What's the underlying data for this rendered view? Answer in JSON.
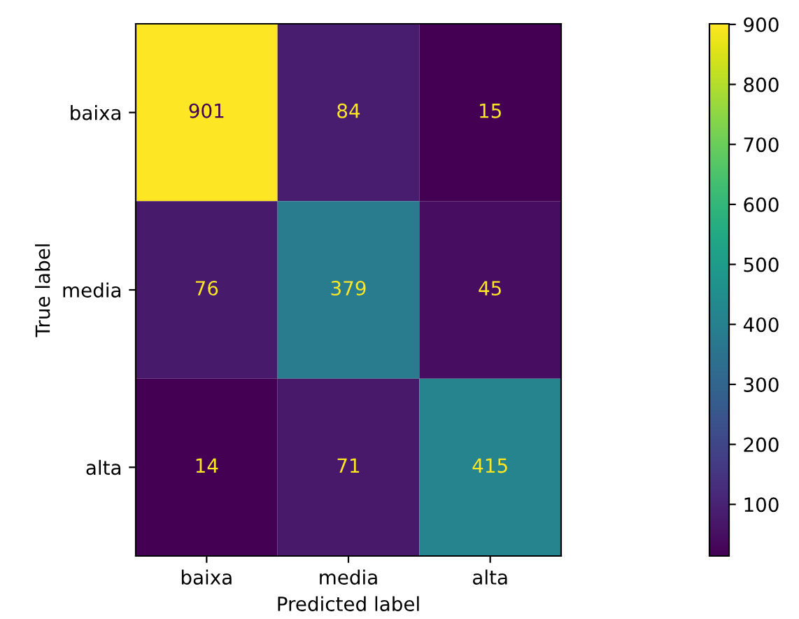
{
  "chart_data": {
    "type": "heatmap",
    "xlabel": "Predicted label",
    "ylabel": "True label",
    "categories": [
      "baixa",
      "media",
      "alta"
    ],
    "y_categories": [
      "baixa",
      "media",
      "alta"
    ],
    "cells": [
      [
        901,
        84,
        15
      ],
      [
        76,
        379,
        45
      ],
      [
        14,
        71,
        415
      ]
    ],
    "data_labels": true,
    "clim": [
      14,
      901
    ],
    "cticks": [
      100,
      200,
      300,
      400,
      500,
      600,
      700,
      800,
      900
    ]
  }
}
